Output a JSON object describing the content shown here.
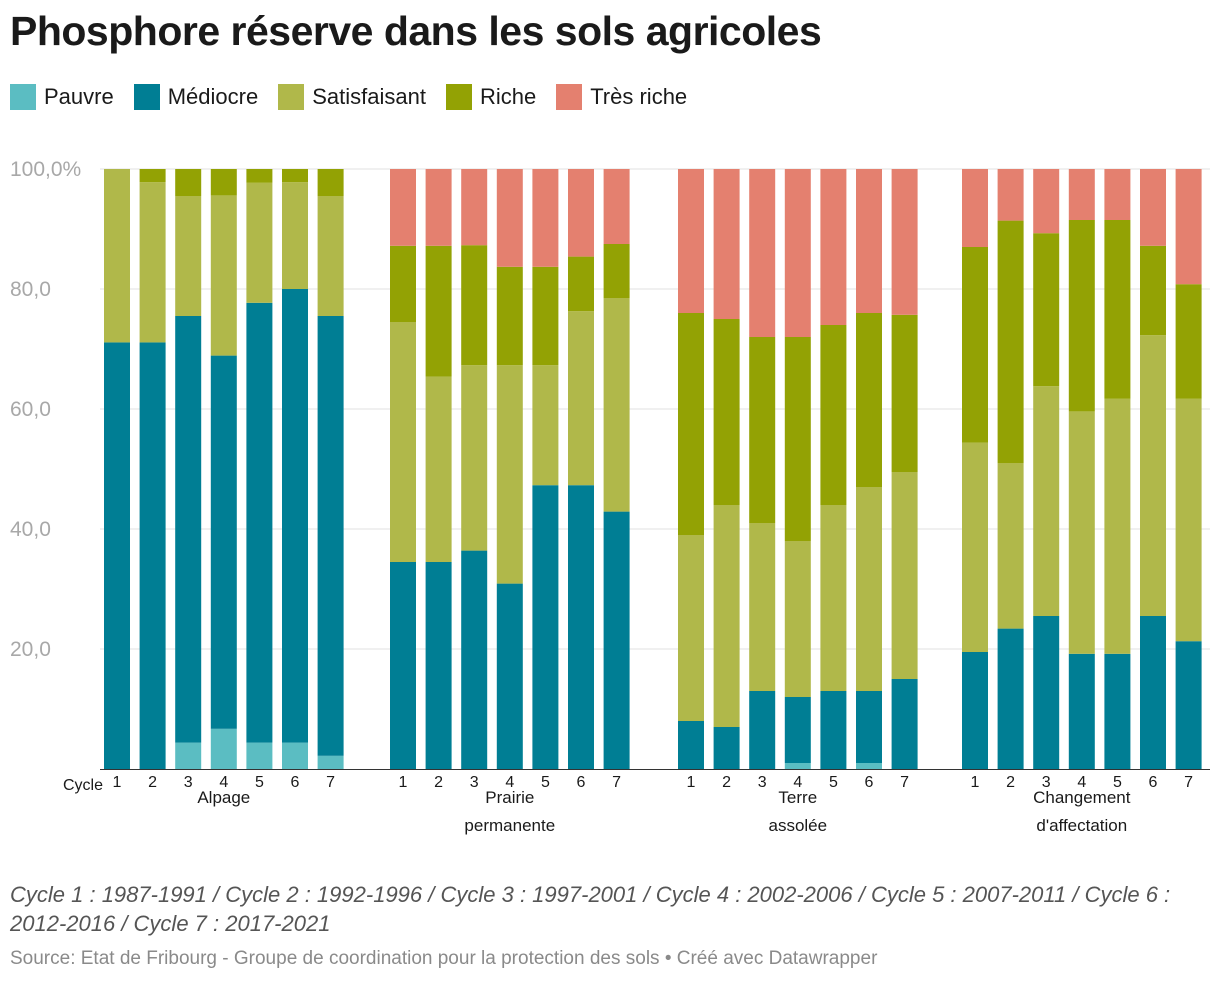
{
  "title": "Phosphore réserve dans les sols agricoles",
  "legend": [
    {
      "label": "Pauvre",
      "color": "#5bbdc2"
    },
    {
      "label": "Médiocre",
      "color": "#007e94"
    },
    {
      "label": "Satisfaisant",
      "color": "#b0b84a"
    },
    {
      "label": "Riche",
      "color": "#93a204"
    },
    {
      "label": "Très riche",
      "color": "#e4806f"
    }
  ],
  "note": "Cycle 1 : 1987-1991 / Cycle 2 : 1992-1996 / Cycle 3 : 1997-2001 / Cycle 4 : 2002-2006 / Cycle 5 : 2007-2011 / Cycle 6 : 2012-2016 / Cycle 7 : 2017-2021",
  "source": "Source: Etat de Fribourg - Groupe de coordination pour la protection des sols • Créé avec Datawrapper",
  "chart_data": {
    "type": "bar",
    "stacked": true,
    "title": "Phosphore réserve dans les sols agricoles",
    "xlabel": "Cycle",
    "ylabel": "",
    "ylim": [
      0,
      100
    ],
    "yticks": [
      "20,0",
      "40,0",
      "60,0",
      "80,0",
      "100,0%"
    ],
    "grid": true,
    "legend_position": "top-left",
    "series_names": [
      "Pauvre",
      "Médiocre",
      "Satisfaisant",
      "Riche",
      "Très riche"
    ],
    "groups": [
      {
        "label": "Alpage",
        "label_lines": [
          "Alpage"
        ],
        "categories": [
          "1",
          "2",
          "3",
          "4",
          "5",
          "6",
          "7"
        ],
        "series": [
          {
            "name": "Pauvre",
            "values": [
              0,
              0,
              4.4,
              6.7,
              4.4,
              4.4,
              2.2
            ]
          },
          {
            "name": "Médiocre",
            "values": [
              71.1,
              71.1,
              71.1,
              62.2,
              73.3,
              75.6,
              73.3
            ]
          },
          {
            "name": "Satisfaisant",
            "values": [
              28.9,
              26.7,
              20.0,
              26.7,
              20.0,
              17.8,
              20.0
            ]
          },
          {
            "name": "Riche",
            "values": [
              0,
              2.2,
              4.5,
              4.4,
              2.3,
              2.2,
              4.5
            ]
          },
          {
            "name": "Très riche",
            "values": [
              0,
              0,
              0,
              0,
              0,
              0,
              0
            ]
          }
        ]
      },
      {
        "label": "Prairie permanente",
        "label_lines": [
          "Prairie",
          "permanente"
        ],
        "categories": [
          "1",
          "2",
          "3",
          "4",
          "5",
          "6",
          "7"
        ],
        "series": [
          {
            "name": "Pauvre",
            "values": [
              0,
              0,
              0,
              0,
              0,
              0,
              0
            ]
          },
          {
            "name": "Médiocre",
            "values": [
              34.5,
              34.5,
              36.4,
              30.9,
              47.3,
              47.3,
              42.9
            ]
          },
          {
            "name": "Satisfaisant",
            "values": [
              40.0,
              30.9,
              30.9,
              36.4,
              20.0,
              29.0,
              35.6
            ]
          },
          {
            "name": "Riche",
            "values": [
              12.7,
              21.8,
              20.0,
              16.4,
              16.4,
              9.1,
              9.0
            ]
          },
          {
            "name": "Très riche",
            "values": [
              12.8,
              12.8,
              12.7,
              16.3,
              16.3,
              14.6,
              12.5
            ]
          }
        ]
      },
      {
        "label": "Terre assolée",
        "label_lines": [
          "Terre",
          "assolée"
        ],
        "categories": [
          "1",
          "2",
          "3",
          "4",
          "5",
          "6",
          "7"
        ],
        "series": [
          {
            "name": "Pauvre",
            "values": [
              0,
              0,
              0,
              1.0,
              0,
              1.0,
              0
            ]
          },
          {
            "name": "Médiocre",
            "values": [
              8.0,
              7.0,
              13.0,
              11.0,
              13.0,
              12.0,
              15.0
            ]
          },
          {
            "name": "Satisfaisant",
            "values": [
              31.0,
              37.0,
              28.0,
              26.0,
              31.0,
              34.0,
              34.5
            ]
          },
          {
            "name": "Riche",
            "values": [
              37.0,
              31.0,
              31.0,
              34.0,
              30.0,
              29.0,
              26.2
            ]
          },
          {
            "name": "Très riche",
            "values": [
              24.0,
              25.0,
              28.0,
              28.0,
              26.0,
              24.0,
              24.3
            ]
          }
        ]
      },
      {
        "label": "Changement d'affectation",
        "label_lines": [
          "Changement",
          "d'affectation"
        ],
        "categories": [
          "1",
          "2",
          "3",
          "4",
          "5",
          "6",
          "7"
        ],
        "series": [
          {
            "name": "Pauvre",
            "values": [
              0,
              0,
              0,
              0,
              0,
              0,
              0
            ]
          },
          {
            "name": "Médiocre",
            "values": [
              19.5,
              23.4,
              25.5,
              19.2,
              19.2,
              25.5,
              21.3
            ]
          },
          {
            "name": "Satisfaisant",
            "values": [
              34.9,
              27.6,
              38.3,
              40.4,
              42.5,
              46.8,
              40.4
            ]
          },
          {
            "name": "Riche",
            "values": [
              32.6,
              40.4,
              25.5,
              31.9,
              29.8,
              14.9,
              19.1
            ]
          },
          {
            "name": "Très riche",
            "values": [
              13.0,
              8.6,
              10.7,
              8.5,
              8.5,
              12.8,
              19.2
            ]
          }
        ]
      }
    ]
  }
}
